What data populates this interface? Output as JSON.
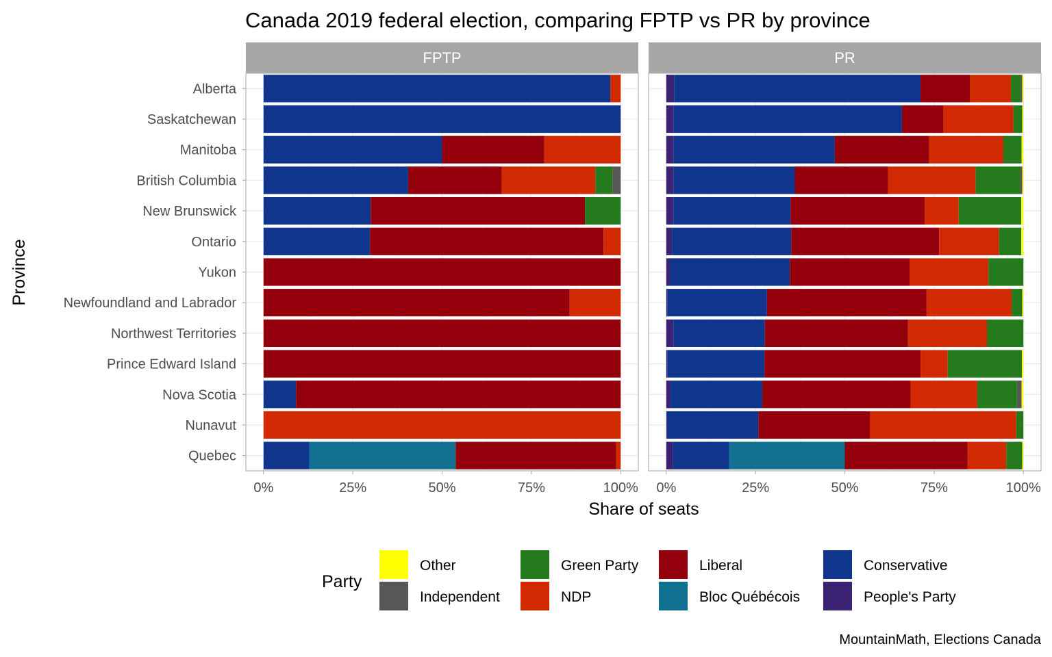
{
  "chart_data": {
    "type": "bar",
    "orientation": "horizontal",
    "stacked": true,
    "title": "Canada 2019 federal election, comparing FPTP vs PR by province",
    "xlabel": "Share of seats",
    "ylabel": "Province",
    "caption": "MountainMath, Elections Canada",
    "xlim": [
      0,
      1
    ],
    "x_ticks": [
      "0%",
      "25%",
      "50%",
      "75%",
      "100%"
    ],
    "grid": true,
    "legend": {
      "title": "Party",
      "placement": "bottom",
      "order": [
        "Other",
        "Independent",
        "Green Party",
        "NDP",
        "Liberal",
        "Bloc Québécois",
        "Conservative",
        "People's Party"
      ]
    },
    "colors": {
      "People's Party": "#3b2273",
      "Conservative": "#0f368c",
      "Bloc Québécois": "#127090",
      "Liberal": "#93000c",
      "NDP": "#d12a03",
      "Green Party": "#267a1e",
      "Independent": "#575757",
      "Other": "#ffff00"
    },
    "stack_order": [
      "People's Party",
      "Conservative",
      "Bloc Québécois",
      "Liberal",
      "NDP",
      "Green Party",
      "Independent",
      "Other"
    ],
    "categories": [
      "Alberta",
      "Saskatchewan",
      "Manitoba",
      "British Columbia",
      "New Brunswick",
      "Ontario",
      "Yukon",
      "Newfoundland and Labrador",
      "Northwest Territories",
      "Prince Edward Island",
      "Nova Scotia",
      "Nunavut",
      "Quebec"
    ],
    "panels": [
      {
        "name": "FPTP",
        "values": {
          "Alberta": {
            "Conservative": 0.971,
            "NDP": 0.029
          },
          "Saskatchewan": {
            "Conservative": 1.0
          },
          "Manitoba": {
            "Conservative": 0.5,
            "Liberal": 0.286,
            "NDP": 0.214
          },
          "British Columbia": {
            "Conservative": 0.405,
            "Liberal": 0.262,
            "NDP": 0.262,
            "Green Party": 0.048,
            "Independent": 0.024
          },
          "New Brunswick": {
            "Conservative": 0.3,
            "Liberal": 0.6,
            "Green Party": 0.1
          },
          "Ontario": {
            "Conservative": 0.298,
            "Liberal": 0.654,
            "NDP": 0.048
          },
          "Yukon": {
            "Liberal": 1.0
          },
          "Newfoundland and Labrador": {
            "Liberal": 0.857,
            "NDP": 0.143
          },
          "Northwest Territories": {
            "Liberal": 1.0
          },
          "Prince Edward Island": {
            "Liberal": 1.0
          },
          "Nova Scotia": {
            "Conservative": 0.091,
            "Liberal": 0.909
          },
          "Nunavut": {
            "NDP": 1.0
          },
          "Quebec": {
            "Conservative": 0.128,
            "Bloc Québécois": 0.41,
            "Liberal": 0.449,
            "NDP": 0.013
          }
        }
      },
      {
        "name": "PR",
        "values": {
          "Alberta": {
            "People's Party": 0.022,
            "Conservative": 0.69,
            "Liberal": 0.138,
            "NDP": 0.115,
            "Green Party": 0.028,
            "Independent": 0.004,
            "Other": 0.003
          },
          "Saskatchewan": {
            "People's Party": 0.02,
            "Conservative": 0.64,
            "Liberal": 0.116,
            "NDP": 0.196,
            "Green Party": 0.025,
            "Other": 0.003
          },
          "Manitoba": {
            "People's Party": 0.02,
            "Conservative": 0.452,
            "Liberal": 0.264,
            "NDP": 0.208,
            "Green Party": 0.051,
            "Other": 0.005
          },
          "British Columbia": {
            "People's Party": 0.02,
            "Conservative": 0.34,
            "Liberal": 0.261,
            "NDP": 0.245,
            "Green Party": 0.125,
            "Independent": 0.006,
            "Other": 0.003
          },
          "New Brunswick": {
            "People's Party": 0.02,
            "Conservative": 0.328,
            "Liberal": 0.376,
            "NDP": 0.095,
            "Green Party": 0.175,
            "Other": 0.006
          },
          "Ontario": {
            "People's Party": 0.016,
            "Conservative": 0.334,
            "Liberal": 0.414,
            "NDP": 0.168,
            "Green Party": 0.062,
            "Other": 0.006
          },
          "Yukon": {
            "People's Party": 0.01,
            "Conservative": 0.336,
            "Liberal": 0.336,
            "NDP": 0.22,
            "Green Party": 0.098
          },
          "Newfoundland and Labrador": {
            "People's Party": 0.003,
            "Conservative": 0.279,
            "Liberal": 0.447,
            "NDP": 0.238,
            "Green Party": 0.03,
            "Other": 0.003
          },
          "Northwest Territories": {
            "People's Party": 0.02,
            "Conservative": 0.256,
            "Liberal": 0.401,
            "NDP": 0.221,
            "Green Party": 0.102
          },
          "Prince Edward Island": {
            "People's Party": 0.003,
            "Conservative": 0.272,
            "Liberal": 0.437,
            "NDP": 0.076,
            "Green Party": 0.208,
            "Other": 0.004
          },
          "Nova Scotia": {
            "People's Party": 0.012,
            "Conservative": 0.257,
            "Liberal": 0.415,
            "NDP": 0.187,
            "Green Party": 0.111,
            "Independent": 0.013,
            "Other": 0.005
          },
          "Nunavut": {
            "People's Party": 0.002,
            "Conservative": 0.256,
            "Liberal": 0.312,
            "NDP": 0.41,
            "Green Party": 0.02
          },
          "Quebec": {
            "People's Party": 0.018,
            "Conservative": 0.158,
            "Bloc Québécois": 0.324,
            "Liberal": 0.344,
            "NDP": 0.108,
            "Green Party": 0.045,
            "Other": 0.003
          }
        }
      }
    ]
  }
}
